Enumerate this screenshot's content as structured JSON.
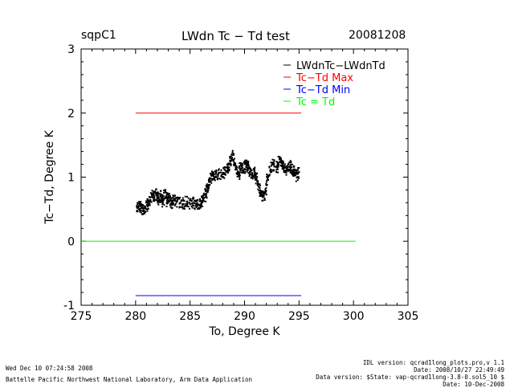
{
  "header": {
    "site": "sqpC1",
    "title": "LWdn Tc − Td test",
    "date": "20081208"
  },
  "footer": {
    "timestamp": "Wed Dec 10 07:24:58 2008",
    "lab": "Battelle Pacific Northwest National Laboratory, Arm Data Application",
    "idl_version": "IDL version: qcrad1long_plots.pro,v 1.1",
    "idl_date": "Date: 2008/10/27 22:49:49",
    "data_version": "Data version: $State: vap-qcrad1long-3.8-0.sol5_10 $",
    "data_date": "Date: 10-Dec-2008"
  },
  "chart_data": {
    "type": "scatter",
    "title": "LWdn Tc − Td test",
    "xlabel": "To, Degree K",
    "ylabel": "Tc−Td, Degree K",
    "xlim": [
      275,
      305
    ],
    "ylim": [
      -1,
      3
    ],
    "xticks": [
      275,
      280,
      285,
      290,
      295,
      300,
      305
    ],
    "yticks": [
      -1,
      0,
      1,
      2,
      3
    ],
    "grid": false,
    "legend_position": "top-right",
    "legend": [
      {
        "label": "LWdnTc−LWdnTd",
        "color": "#000000"
      },
      {
        "label": "Tc−Td Max",
        "color": "#ff0000"
      },
      {
        "label": "Tc−Td Min",
        "color": "#0000ff"
      },
      {
        "label": "Tc = Td",
        "color": "#00ff00"
      }
    ],
    "reference_lines": [
      {
        "name": "Tc−Td Max",
        "y": 2.0,
        "x": [
          280.0,
          295.2
        ],
        "color": "#ff0000"
      },
      {
        "name": "Tc−Td Min",
        "y": -0.85,
        "x": [
          280.0,
          295.2
        ],
        "color": "#0000ff"
      },
      {
        "name": "Tc = Td",
        "y": 0.0,
        "x": [
          275.0,
          300.2
        ],
        "color": "#00ff00"
      }
    ],
    "series": [
      {
        "name": "LWdnTc−LWdnTd",
        "color": "#000000",
        "points": [
          [
            280.1,
            0.55
          ],
          [
            280.3,
            0.5
          ],
          [
            280.5,
            0.58
          ],
          [
            280.7,
            0.47
          ],
          [
            280.9,
            0.52
          ],
          [
            281.1,
            0.56
          ],
          [
            281.3,
            0.62
          ],
          [
            281.5,
            0.72
          ],
          [
            281.7,
            0.68
          ],
          [
            281.9,
            0.75
          ],
          [
            282.1,
            0.63
          ],
          [
            282.3,
            0.71
          ],
          [
            282.5,
            0.6
          ],
          [
            282.7,
            0.77
          ],
          [
            282.9,
            0.62
          ],
          [
            283.1,
            0.68
          ],
          [
            283.3,
            0.59
          ],
          [
            283.5,
            0.65
          ],
          [
            283.8,
            0.62
          ],
          [
            284.1,
            0.6
          ],
          [
            284.4,
            0.58
          ],
          [
            284.7,
            0.62
          ],
          [
            285.0,
            0.58
          ],
          [
            285.3,
            0.6
          ],
          [
            285.6,
            0.58
          ],
          [
            285.9,
            0.57
          ],
          [
            286.1,
            0.63
          ],
          [
            286.3,
            0.68
          ],
          [
            286.5,
            0.75
          ],
          [
            286.7,
            0.88
          ],
          [
            286.9,
            0.98
          ],
          [
            287.1,
            1.05
          ],
          [
            287.3,
            1.0
          ],
          [
            287.6,
            1.05
          ],
          [
            288.0,
            1.05
          ],
          [
            288.3,
            1.1
          ],
          [
            288.5,
            1.15
          ],
          [
            288.7,
            1.25
          ],
          [
            288.9,
            1.35
          ],
          [
            289.1,
            1.2
          ],
          [
            289.3,
            1.12
          ],
          [
            289.5,
            1.05
          ],
          [
            289.7,
            1.18
          ],
          [
            289.9,
            1.1
          ],
          [
            290.1,
            1.22
          ],
          [
            290.3,
            1.15
          ],
          [
            290.5,
            1.08
          ],
          [
            290.7,
            1.02
          ],
          [
            290.9,
            1.1
          ],
          [
            291.1,
            0.98
          ],
          [
            291.3,
            0.85
          ],
          [
            291.5,
            0.72
          ],
          [
            291.7,
            0.7
          ],
          [
            291.9,
            0.75
          ],
          [
            292.1,
            1.0
          ],
          [
            292.4,
            1.12
          ],
          [
            292.7,
            1.2
          ],
          [
            293.0,
            1.15
          ],
          [
            293.2,
            1.28
          ],
          [
            293.4,
            1.22
          ],
          [
            293.6,
            1.15
          ],
          [
            293.8,
            1.1
          ],
          [
            294.0,
            1.2
          ],
          [
            294.2,
            1.18
          ],
          [
            294.4,
            1.05
          ],
          [
            294.6,
            1.12
          ],
          [
            294.8,
            1.0
          ],
          [
            295.0,
            1.08
          ]
        ]
      }
    ]
  }
}
